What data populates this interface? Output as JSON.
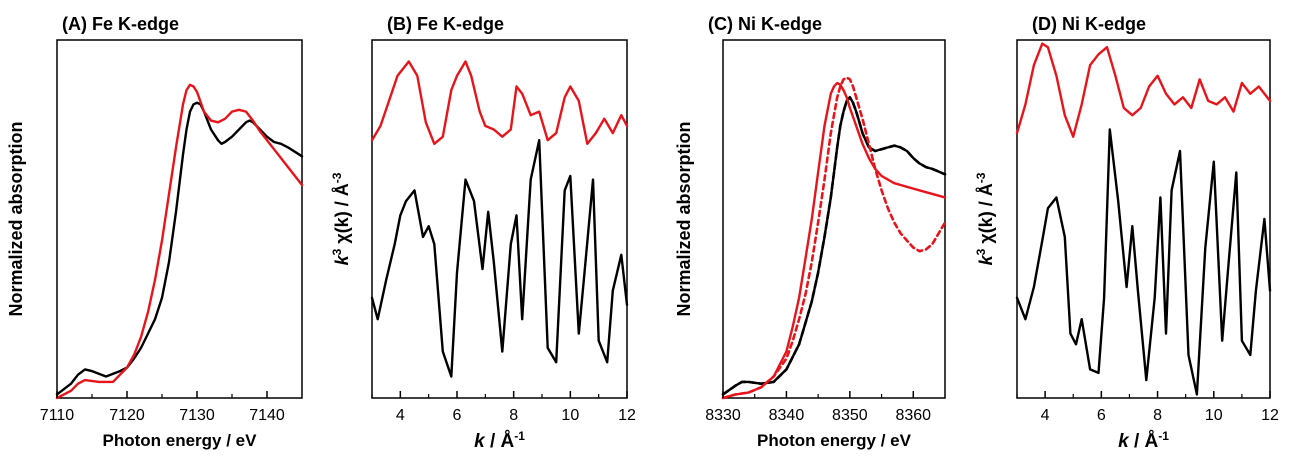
{
  "chart_data": [
    {
      "type": "line",
      "title": "(A) Fe K-edge",
      "xlabel": "Photon energy / eV",
      "ylabel": "Normalized absorption",
      "xlim": [
        7110,
        7145
      ],
      "ylim": [
        0,
        1
      ],
      "xticks": [
        7110,
        7120,
        7130,
        7140
      ],
      "y_ticks_shown": false,
      "series": [
        {
          "color": "#000000",
          "dashed": false,
          "x": [
            7110,
            7112,
            7113,
            7114,
            7115,
            7117,
            7119,
            7120,
            7121,
            7122,
            7123,
            7124,
            7125,
            7126,
            7127,
            7127.5,
            7128,
            7128.5,
            7129,
            7129.5,
            7130,
            7130.5,
            7131,
            7132,
            7133,
            7133.5,
            7134,
            7135,
            7136,
            7137,
            7137.5,
            7138,
            7139,
            7140,
            7141,
            7142,
            7143,
            7145
          ],
          "y": [
            0.01,
            0.04,
            0.065,
            0.08,
            0.075,
            0.06,
            0.075,
            0.085,
            0.11,
            0.14,
            0.18,
            0.22,
            0.28,
            0.38,
            0.52,
            0.6,
            0.68,
            0.75,
            0.8,
            0.82,
            0.825,
            0.82,
            0.8,
            0.75,
            0.72,
            0.71,
            0.715,
            0.73,
            0.75,
            0.77,
            0.775,
            0.77,
            0.75,
            0.73,
            0.715,
            0.71,
            0.7,
            0.675
          ]
        },
        {
          "color": "#e8141b",
          "dashed": false,
          "x": [
            7110,
            7112,
            7113,
            7114,
            7116,
            7118,
            7119,
            7120,
            7121,
            7122,
            7123,
            7124,
            7125,
            7126,
            7127,
            7127.5,
            7128,
            7128.5,
            7129,
            7129.5,
            7130,
            7131,
            7132,
            7133,
            7134,
            7135,
            7136,
            7137,
            7138,
            7139,
            7140,
            7141,
            7142,
            7143,
            7145
          ],
          "y": [
            0.0,
            0.02,
            0.04,
            0.05,
            0.045,
            0.045,
            0.065,
            0.085,
            0.12,
            0.17,
            0.24,
            0.33,
            0.44,
            0.57,
            0.7,
            0.76,
            0.82,
            0.86,
            0.875,
            0.87,
            0.855,
            0.8,
            0.775,
            0.77,
            0.78,
            0.8,
            0.805,
            0.8,
            0.775,
            0.745,
            0.72,
            0.695,
            0.67,
            0.645,
            0.595
          ]
        }
      ]
    },
    {
      "type": "line",
      "title": "(B) Fe K-edge",
      "xlabel": "k / Å-1",
      "ylabel": "k3 χ(k) / Å-3",
      "xlim": [
        3,
        12
      ],
      "ylim": [
        0,
        1
      ],
      "xticks": [
        4,
        6,
        8,
        10,
        12
      ],
      "y_ticks_shown": false,
      "series": [
        {
          "color": "#e8141b",
          "dashed": false,
          "x": [
            3.0,
            3.3,
            3.6,
            3.9,
            4.3,
            4.6,
            4.9,
            5.2,
            5.5,
            5.8,
            6.0,
            6.3,
            6.5,
            6.8,
            7.0,
            7.3,
            7.6,
            7.9,
            8.1,
            8.3,
            8.6,
            8.9,
            9.2,
            9.5,
            9.8,
            10.0,
            10.3,
            10.6,
            10.9,
            11.2,
            11.5,
            11.8,
            12.0
          ],
          "y": [
            0.72,
            0.76,
            0.83,
            0.9,
            0.94,
            0.9,
            0.77,
            0.71,
            0.73,
            0.86,
            0.9,
            0.94,
            0.9,
            0.8,
            0.76,
            0.75,
            0.73,
            0.75,
            0.87,
            0.85,
            0.79,
            0.8,
            0.72,
            0.74,
            0.84,
            0.87,
            0.83,
            0.71,
            0.74,
            0.78,
            0.74,
            0.79,
            0.76
          ]
        },
        {
          "color": "#000000",
          "dashed": false,
          "x": [
            3.0,
            3.2,
            3.5,
            3.8,
            4.0,
            4.2,
            4.5,
            4.8,
            5.0,
            5.2,
            5.5,
            5.8,
            6.0,
            6.3,
            6.6,
            6.9,
            7.1,
            7.3,
            7.6,
            7.9,
            8.1,
            8.3,
            8.6,
            8.9,
            9.2,
            9.5,
            9.8,
            10.0,
            10.3,
            10.5,
            10.8,
            11.0,
            11.3,
            11.5,
            11.8,
            12.0
          ],
          "y": [
            0.28,
            0.22,
            0.33,
            0.43,
            0.51,
            0.55,
            0.58,
            0.45,
            0.48,
            0.43,
            0.13,
            0.06,
            0.35,
            0.61,
            0.55,
            0.36,
            0.52,
            0.38,
            0.13,
            0.43,
            0.51,
            0.22,
            0.61,
            0.72,
            0.14,
            0.1,
            0.58,
            0.62,
            0.18,
            0.35,
            0.61,
            0.16,
            0.1,
            0.3,
            0.4,
            0.26
          ]
        }
      ]
    },
    {
      "type": "line",
      "title": "(C) Ni K-edge",
      "xlabel": "Photon energy / eV",
      "ylabel": "Normalized absorption",
      "xlim": [
        8330,
        8365
      ],
      "ylim": [
        0,
        1
      ],
      "xticks": [
        8330,
        8340,
        8350,
        8360
      ],
      "y_ticks_shown": false,
      "series": [
        {
          "color": "#000000",
          "dashed": false,
          "x": [
            8330,
            8332,
            8333,
            8334,
            8336,
            8338,
            8340,
            8342,
            8343,
            8344,
            8345,
            8346,
            8347,
            8347.5,
            8348,
            8348.5,
            8349,
            8349.5,
            8350,
            8350.5,
            8351,
            8351.5,
            8352,
            8353,
            8354,
            8355,
            8356,
            8357,
            8358,
            8359,
            8360,
            8361,
            8362,
            8363,
            8365
          ],
          "y": [
            0.01,
            0.035,
            0.045,
            0.045,
            0.04,
            0.045,
            0.08,
            0.15,
            0.21,
            0.27,
            0.35,
            0.45,
            0.56,
            0.63,
            0.7,
            0.76,
            0.8,
            0.83,
            0.84,
            0.825,
            0.8,
            0.77,
            0.74,
            0.7,
            0.69,
            0.695,
            0.7,
            0.705,
            0.7,
            0.69,
            0.67,
            0.655,
            0.645,
            0.64,
            0.625
          ]
        },
        {
          "color": "#000000",
          "dashed": true,
          "x": [
            8330,
            8332,
            8333,
            8334,
            8336,
            8338,
            8340,
            8342,
            8343,
            8344,
            8345,
            8346,
            8347,
            8347.5,
            8348,
            8348.5,
            8349,
            8349.5,
            8350,
            8350.5,
            8351,
            8351.5,
            8352,
            8353,
            8354,
            8355,
            8356,
            8357,
            8358,
            8359,
            8360,
            8361,
            8362,
            8363,
            8365
          ],
          "y": [
            0.01,
            0.035,
            0.045,
            0.045,
            0.04,
            0.045,
            0.08,
            0.15,
            0.21,
            0.27,
            0.35,
            0.45,
            0.56,
            0.63,
            0.7,
            0.76,
            0.8,
            0.83,
            0.84,
            0.825,
            0.8,
            0.77,
            0.74,
            0.7,
            0.69,
            0.695,
            0.7,
            0.705,
            0.7,
            0.69,
            0.67,
            0.655,
            0.645,
            0.64,
            0.625
          ]
        },
        {
          "color": "#e8141b",
          "dashed": false,
          "x": [
            8330,
            8332,
            8334,
            8336,
            8338,
            8340,
            8341,
            8342,
            8343,
            8344,
            8345,
            8346,
            8347,
            8347.5,
            8348,
            8348.5,
            8349,
            8349.5,
            8350,
            8351,
            8352,
            8353,
            8354,
            8355,
            8356,
            8357,
            8358,
            8359,
            8360,
            8362,
            8364,
            8365
          ],
          "y": [
            0.0,
            0.01,
            0.015,
            0.03,
            0.06,
            0.13,
            0.2,
            0.28,
            0.39,
            0.5,
            0.63,
            0.76,
            0.85,
            0.87,
            0.88,
            0.875,
            0.86,
            0.84,
            0.81,
            0.76,
            0.71,
            0.67,
            0.64,
            0.62,
            0.61,
            0.6,
            0.595,
            0.59,
            0.585,
            0.575,
            0.565,
            0.56
          ]
        },
        {
          "color": "#e8141b",
          "dashed": true,
          "x": [
            8330,
            8332,
            8334,
            8336,
            8338,
            8340,
            8341,
            8342,
            8343,
            8344,
            8345,
            8346,
            8347,
            8348,
            8348.5,
            8349,
            8349.5,
            8350,
            8350.5,
            8351,
            8352,
            8353,
            8354,
            8355,
            8356,
            8357,
            8358,
            8359,
            8360,
            8361,
            8362,
            8363,
            8364,
            8365
          ],
          "y": [
            0.0,
            0.01,
            0.015,
            0.03,
            0.06,
            0.11,
            0.16,
            0.22,
            0.29,
            0.38,
            0.49,
            0.61,
            0.74,
            0.84,
            0.87,
            0.89,
            0.895,
            0.89,
            0.87,
            0.84,
            0.78,
            0.71,
            0.64,
            0.58,
            0.53,
            0.49,
            0.46,
            0.44,
            0.42,
            0.41,
            0.415,
            0.43,
            0.46,
            0.49
          ]
        }
      ]
    },
    {
      "type": "line",
      "title": "(D) Ni K-edge",
      "xlabel": "k / Å-1",
      "ylabel": "k3 χ(k) / Å-3",
      "xlim": [
        3,
        12
      ],
      "ylim": [
        0,
        1
      ],
      "xticks": [
        4,
        6,
        8,
        10,
        12
      ],
      "y_ticks_shown": false,
      "series": [
        {
          "color": "#e8141b",
          "dashed": false,
          "x": [
            3.0,
            3.3,
            3.6,
            3.9,
            4.1,
            4.4,
            4.7,
            5.0,
            5.3,
            5.6,
            5.9,
            6.2,
            6.5,
            6.8,
            7.1,
            7.4,
            7.7,
            8.0,
            8.3,
            8.6,
            8.9,
            9.2,
            9.5,
            9.8,
            10.1,
            10.4,
            10.7,
            11.0,
            11.3,
            11.6,
            12.0
          ],
          "y": [
            0.74,
            0.82,
            0.93,
            0.99,
            0.98,
            0.9,
            0.79,
            0.73,
            0.82,
            0.93,
            0.96,
            0.98,
            0.9,
            0.81,
            0.79,
            0.81,
            0.87,
            0.9,
            0.85,
            0.82,
            0.84,
            0.81,
            0.89,
            0.83,
            0.82,
            0.84,
            0.8,
            0.88,
            0.85,
            0.87,
            0.83
          ]
        },
        {
          "color": "#000000",
          "dashed": false,
          "x": [
            3.0,
            3.3,
            3.6,
            3.9,
            4.1,
            4.4,
            4.7,
            4.9,
            5.1,
            5.3,
            5.6,
            5.9,
            6.1,
            6.3,
            6.6,
            6.9,
            7.1,
            7.3,
            7.6,
            7.9,
            8.1,
            8.3,
            8.5,
            8.8,
            9.1,
            9.4,
            9.7,
            10.0,
            10.3,
            10.5,
            10.8,
            11.0,
            11.3,
            11.5,
            11.8,
            12.0
          ],
          "y": [
            0.28,
            0.22,
            0.31,
            0.44,
            0.53,
            0.56,
            0.45,
            0.18,
            0.15,
            0.22,
            0.08,
            0.07,
            0.28,
            0.75,
            0.55,
            0.31,
            0.48,
            0.3,
            0.05,
            0.28,
            0.56,
            0.18,
            0.58,
            0.69,
            0.12,
            0.01,
            0.42,
            0.66,
            0.16,
            0.35,
            0.63,
            0.16,
            0.12,
            0.3,
            0.5,
            0.3
          ]
        }
      ]
    }
  ]
}
